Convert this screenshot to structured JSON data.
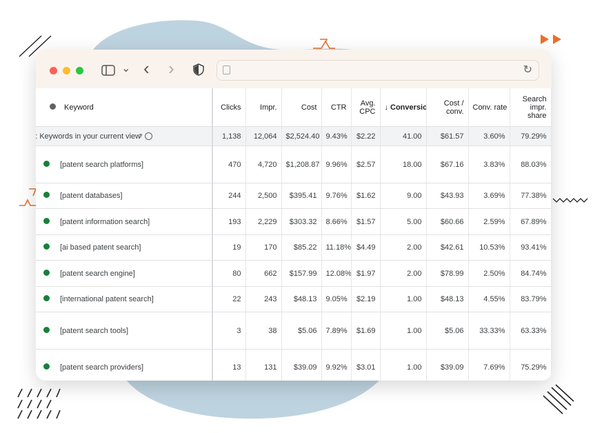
{
  "colors": {
    "accent": "#e8712b",
    "blob": "#bed3e0",
    "status_dot": "#188038"
  },
  "icons": {
    "sidebar": "sidebar-icon",
    "chevron": "chevron-down-icon",
    "back": "back-arrow-icon",
    "forward": "forward-arrow-icon",
    "shield": "shield-icon",
    "page": "page-icon",
    "reload": "reload-icon",
    "help": "help-icon",
    "sort": "sort-down-icon"
  },
  "toolbar": {
    "reload_glyph": "↻",
    "back_glyph": "‹",
    "forward_glyph": "›",
    "chevron_glyph": "⌄"
  },
  "table": {
    "headers": {
      "keyword": "Keyword",
      "clicks": "Clicks",
      "impr": "Impr.",
      "cost": "Cost",
      "ctr": "CTR",
      "avg_cpc_1": "Avg.",
      "avg_cpc_2": "CPC",
      "sort_arrow": "↓",
      "conversions": "Conversions",
      "cost_conv_1": "Cost /",
      "cost_conv_2": "conv.",
      "conv_rate": "Conv. rate",
      "search_share_1": "Search",
      "search_share_2": "impr.",
      "search_share_3": "share"
    },
    "total": {
      "label": "Total: Keywords in your current view",
      "help_glyph": "?",
      "clicks": "1,138",
      "impr": "12,064",
      "cost": "$2,524.40",
      "ctr": "9.43%",
      "avg_cpc": "$2.22",
      "conversions": "41.00",
      "cost_conv": "$61.57",
      "conv_rate": "3.60%",
      "search_share": "79.29%"
    },
    "rows": [
      {
        "keyword": "[patent search platforms]",
        "clicks": "470",
        "impr": "4,720",
        "cost": "$1,208.87",
        "ctr": "9.96%",
        "avg_cpc": "$2.57",
        "conversions": "18.00",
        "cost_conv": "$67.16",
        "conv_rate": "3.83%",
        "search_share": "88.03%"
      },
      {
        "keyword": "[patent databases]",
        "clicks": "244",
        "impr": "2,500",
        "cost": "$395.41",
        "ctr": "9.76%",
        "avg_cpc": "$1.62",
        "conversions": "9.00",
        "cost_conv": "$43.93",
        "conv_rate": "3.69%",
        "search_share": "77.38%"
      },
      {
        "keyword": "[patent information search]",
        "clicks": "193",
        "impr": "2,229",
        "cost": "$303.32",
        "ctr": "8.66%",
        "avg_cpc": "$1.57",
        "conversions": "5.00",
        "cost_conv": "$60.66",
        "conv_rate": "2.59%",
        "search_share": "67.89%"
      },
      {
        "keyword": "[ai based patent search]",
        "clicks": "19",
        "impr": "170",
        "cost": "$85.22",
        "ctr": "11.18%",
        "avg_cpc": "$4.49",
        "conversions": "2.00",
        "cost_conv": "$42.61",
        "conv_rate": "10.53%",
        "search_share": "93.41%"
      },
      {
        "keyword": "[patent search engine]",
        "clicks": "80",
        "impr": "662",
        "cost": "$157.99",
        "ctr": "12.08%",
        "avg_cpc": "$1.97",
        "conversions": "2.00",
        "cost_conv": "$78.99",
        "conv_rate": "2.50%",
        "search_share": "84.74%"
      },
      {
        "keyword": "[international patent search]",
        "clicks": "22",
        "impr": "243",
        "cost": "$48.13",
        "ctr": "9.05%",
        "avg_cpc": "$2.19",
        "conversions": "1.00",
        "cost_conv": "$48.13",
        "conv_rate": "4.55%",
        "search_share": "83.79%"
      },
      {
        "keyword": "[patent search tools]",
        "clicks": "3",
        "impr": "38",
        "cost": "$5.06",
        "ctr": "7.89%",
        "avg_cpc": "$1.69",
        "conversions": "1.00",
        "cost_conv": "$5.06",
        "conv_rate": "33.33%",
        "search_share": "63.33%"
      },
      {
        "keyword": "[patent search providers]",
        "clicks": "13",
        "impr": "131",
        "cost": "$39.09",
        "ctr": "9.92%",
        "avg_cpc": "$3.01",
        "conversions": "1.00",
        "cost_conv": "$39.09",
        "conv_rate": "7.69%",
        "search_share": "75.29%"
      }
    ]
  }
}
